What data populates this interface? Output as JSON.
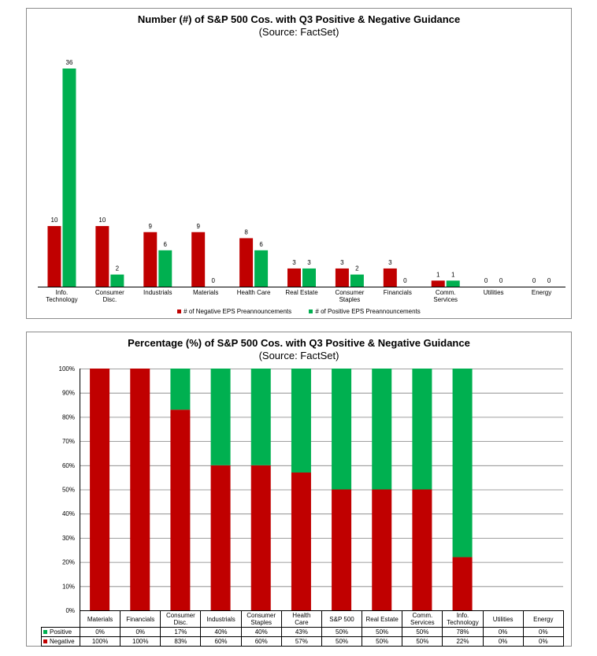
{
  "colors": {
    "negative": "#c00000",
    "positive": "#00b050",
    "axis": "#000000",
    "grid": "#808080"
  },
  "chart_data": [
    {
      "type": "bar",
      "title": "Number (#) of S&P 500 Cos. with Q3 Positive & Negative Guidance",
      "subtitle": "(Source: FactSet)",
      "categories": [
        [
          "Info.",
          "Technology"
        ],
        [
          "Consumer",
          "Disc."
        ],
        [
          "Industrials"
        ],
        [
          "Materials"
        ],
        [
          "Health Care"
        ],
        [
          "Real Estate"
        ],
        [
          "Consumer",
          "Staples"
        ],
        [
          "Financials"
        ],
        [
          "Comm.",
          "Services"
        ],
        [
          "Utilities"
        ],
        [
          "Energy"
        ]
      ],
      "series": [
        {
          "name": "# of Negative EPS Preannouncements",
          "values": [
            10,
            10,
            9,
            9,
            8,
            3,
            3,
            3,
            1,
            0,
            0
          ]
        },
        {
          "name": "# of Positive EPS Preannouncements",
          "values": [
            36,
            2,
            6,
            0,
            6,
            3,
            2,
            0,
            1,
            0,
            0
          ]
        }
      ],
      "ylim": [
        0,
        36
      ],
      "legend": "bottom"
    },
    {
      "type": "bar",
      "stacked": true,
      "title": "Percentage (%) of S&P 500 Cos. with Q3 Positive & Negative Guidance",
      "subtitle": "(Source: FactSet)",
      "categories": [
        [
          "Materials"
        ],
        [
          "Financials"
        ],
        [
          "Consumer",
          "Disc."
        ],
        [
          "Industrials"
        ],
        [
          "Consumer",
          "Staples"
        ],
        [
          "Health",
          "Care"
        ],
        [
          "S&P 500"
        ],
        [
          "Real Estate"
        ],
        [
          "Comm.",
          "Services"
        ],
        [
          "Info.",
          "Technology"
        ],
        [
          "Utilities"
        ],
        [
          "Energy"
        ]
      ],
      "series": [
        {
          "name": "Positive",
          "values": [
            0,
            0,
            17,
            40,
            40,
            43,
            50,
            50,
            50,
            78,
            0,
            0
          ]
        },
        {
          "name": "Negative",
          "values": [
            100,
            100,
            83,
            60,
            60,
            57,
            50,
            50,
            50,
            22,
            0,
            0
          ]
        }
      ],
      "table_rows": [
        {
          "label": "Positive",
          "values": [
            "0%",
            "0%",
            "17%",
            "40%",
            "40%",
            "43%",
            "50%",
            "50%",
            "50%",
            "78%",
            "0%",
            "0%"
          ]
        },
        {
          "label": "Negative",
          "values": [
            "100%",
            "100%",
            "83%",
            "60%",
            "60%",
            "57%",
            "50%",
            "50%",
            "50%",
            "22%",
            "0%",
            "0%"
          ]
        }
      ],
      "yticks": [
        "0%",
        "10%",
        "20%",
        "30%",
        "40%",
        "50%",
        "60%",
        "70%",
        "80%",
        "90%",
        "100%"
      ],
      "ylim": [
        0,
        100
      ],
      "grid": true
    }
  ]
}
